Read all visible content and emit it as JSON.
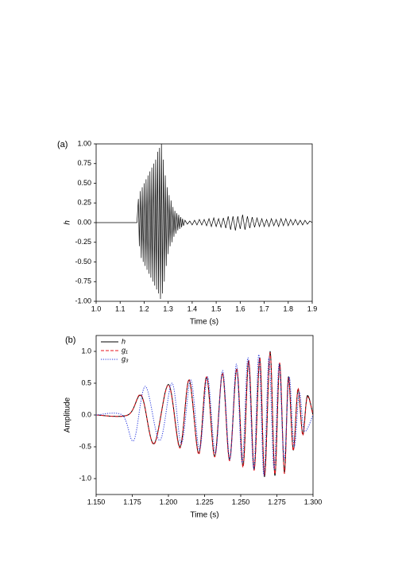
{
  "chart_data": [
    {
      "type": "line",
      "panel_label": "(a)",
      "xlabel": "Time (s)",
      "ylabel": "h",
      "xlim": [
        1.0,
        1.9
      ],
      "ylim": [
        -1.0,
        1.0
      ],
      "xticks": [
        {
          "value": 1.0,
          "label": "1.0"
        },
        1.1,
        1.2,
        1.3,
        1.4,
        1.5,
        1.6,
        1.7,
        1.8,
        1.9
      ],
      "yticks": [
        {
          "value": -1.0,
          "label": "-1.00"
        },
        -0.75,
        {
          "value": -0.5,
          "label": "-0.50"
        },
        -0.25,
        {
          "value": 0,
          "label": "0.00"
        },
        0.25,
        {
          "value": 0.5,
          "label": "0.50"
        },
        0.75,
        {
          "value": 1.0,
          "label": "1.00"
        }
      ],
      "series": [
        {
          "color": "#000000",
          "x": [
            1.0,
            1.17,
            1.176,
            1.18,
            1.184,
            1.188,
            1.192,
            1.196,
            1.2,
            1.204,
            1.208,
            1.212,
            1.216,
            1.22,
            1.224,
            1.228,
            1.232,
            1.236,
            1.24,
            1.244,
            1.248,
            1.252,
            1.256,
            1.26,
            1.264,
            1.268,
            1.272,
            1.276,
            1.28,
            1.284,
            1.288,
            1.292,
            1.296,
            1.3,
            1.304,
            1.308,
            1.312,
            1.316,
            1.32,
            1.324,
            1.328,
            1.332,
            1.336,
            1.34,
            1.344,
            1.348,
            1.352,
            1.356,
            1.36,
            1.364,
            1.37,
            1.38,
            1.39,
            1.4,
            1.41,
            1.42,
            1.43,
            1.44,
            1.45,
            1.46,
            1.47,
            1.48,
            1.49,
            1.5,
            1.51,
            1.52,
            1.53,
            1.54,
            1.55,
            1.56,
            1.57,
            1.58,
            1.59,
            1.6,
            1.61,
            1.62,
            1.63,
            1.64,
            1.65,
            1.66,
            1.67,
            1.68,
            1.69,
            1.7,
            1.71,
            1.72,
            1.73,
            1.74,
            1.75,
            1.76,
            1.77,
            1.78,
            1.79,
            1.8,
            1.81,
            1.82,
            1.83,
            1.84,
            1.85,
            1.86,
            1.87,
            1.88,
            1.89,
            1.9
          ],
          "values": [
            0,
            0,
            0.3,
            -0.3,
            0.4,
            -0.45,
            0.45,
            -0.5,
            0.5,
            -0.55,
            0.55,
            -0.6,
            0.6,
            -0.65,
            0.65,
            -0.7,
            0.7,
            -0.75,
            0.75,
            -0.8,
            0.8,
            -0.85,
            0.9,
            -0.9,
            0.95,
            -0.97,
            1.0,
            -0.9,
            0.8,
            -0.75,
            0.6,
            -0.55,
            0.45,
            -0.4,
            0.35,
            -0.3,
            0.28,
            -0.25,
            0.2,
            -0.18,
            0.15,
            -0.14,
            0.12,
            -0.1,
            0.1,
            -0.08,
            0.07,
            -0.06,
            0.05,
            -0.04,
            0.03,
            -0.02,
            0.02,
            -0.03,
            0.03,
            -0.03,
            0.04,
            -0.03,
            0.04,
            -0.04,
            0.05,
            -0.05,
            0.06,
            -0.05,
            0.05,
            -0.06,
            0.06,
            -0.07,
            0.08,
            -0.09,
            0.08,
            -0.1,
            0.08,
            -0.08,
            0.1,
            -0.09,
            0.08,
            -0.07,
            0.07,
            -0.06,
            0.06,
            -0.05,
            0.05,
            -0.05,
            0.04,
            -0.05,
            0.05,
            -0.04,
            0.04,
            -0.05,
            0.05,
            -0.04,
            0.05,
            -0.04,
            0.04,
            -0.03,
            0.04,
            -0.03,
            0.03,
            -0.03,
            0.03,
            -0.02,
            0.02,
            0
          ]
        }
      ]
    },
    {
      "type": "line",
      "smooth": true,
      "panel_label": "(b)",
      "xlabel": "Time (s)",
      "ylabel": "Amplitude",
      "xlim": [
        1.15,
        1.3
      ],
      "ylim": [
        -1.25,
        1.25
      ],
      "xticks": [
        {
          "value": 1.15,
          "label": "1.150"
        },
        1.175,
        {
          "value": 1.2,
          "label": "1.200"
        },
        1.225,
        {
          "value": 1.25,
          "label": "1.250"
        },
        1.275,
        {
          "value": 1.3,
          "label": "1.300"
        }
      ],
      "yticks": [
        {
          "value": -1.0,
          "label": "-1.0"
        },
        -0.5,
        {
          "value": 0,
          "label": "0.0"
        },
        0.5,
        {
          "value": 1.0,
          "label": "1.0"
        }
      ],
      "legend": "upper left",
      "series": [
        {
          "name": "h",
          "color": "#000000",
          "dash": "solid",
          "x": [
            1.15,
            1.172,
            1.1813,
            1.19,
            1.2,
            1.208,
            1.2143,
            1.221,
            1.2264,
            1.232,
            1.2374,
            1.2423,
            1.2473,
            1.2516,
            1.2555,
            1.2593,
            1.2632,
            1.2665,
            1.2703,
            1.2736,
            1.2769,
            1.2802,
            1.283,
            1.2863,
            1.2896,
            1.2929,
            1.296,
            1.3
          ],
          "values": [
            0,
            0,
            0.3,
            -0.45,
            0.48,
            -0.5,
            0.55,
            -0.6,
            0.6,
            -0.65,
            0.65,
            -0.7,
            0.72,
            -0.8,
            0.85,
            -0.85,
            0.9,
            -0.97,
            1.0,
            -0.95,
            0.8,
            -0.9,
            0.6,
            -0.55,
            0.4,
            -0.3,
            0.3,
            0
          ]
        },
        {
          "name": "g₁",
          "color": "#e8141c",
          "dash": "dashed",
          "x": [
            1.15,
            1.172,
            1.1813,
            1.19,
            1.2,
            1.208,
            1.2143,
            1.221,
            1.2264,
            1.232,
            1.2374,
            1.2423,
            1.2473,
            1.2516,
            1.2555,
            1.2593,
            1.2632,
            1.2665,
            1.2703,
            1.2736,
            1.2769,
            1.2802,
            1.283,
            1.2863,
            1.2896,
            1.2929,
            1.296,
            1.3
          ],
          "values": [
            0,
            0,
            0.31,
            -0.46,
            0.47,
            -0.52,
            0.56,
            -0.62,
            0.6,
            -0.66,
            0.66,
            -0.72,
            0.73,
            -0.82,
            0.86,
            -0.87,
            0.9,
            -0.95,
            0.98,
            -0.93,
            0.82,
            -0.92,
            0.58,
            -0.56,
            0.42,
            -0.32,
            0.28,
            0
          ]
        },
        {
          "name": "g₃",
          "color": "#2233dd",
          "dash": "dotted",
          "x": [
            1.15,
            1.168,
            1.176,
            1.184,
            1.194,
            1.2025,
            1.209,
            1.2155,
            1.2215,
            1.227,
            1.2325,
            1.2375,
            1.2425,
            1.247,
            1.251,
            1.255,
            1.259,
            1.2625,
            1.266,
            1.2695,
            1.273,
            1.2765,
            1.28,
            1.2835,
            1.287,
            1.2905,
            1.294,
            1.3
          ],
          "values": [
            0,
            0,
            -0.4,
            0.45,
            -0.4,
            0.5,
            -0.45,
            0.55,
            -0.55,
            0.6,
            -0.6,
            0.7,
            -0.7,
            0.8,
            -0.75,
            0.9,
            -0.85,
            0.95,
            -0.95,
            0.9,
            -0.85,
            0.8,
            -0.7,
            0.6,
            -0.5,
            0.35,
            -0.25,
            0
          ]
        }
      ]
    }
  ]
}
